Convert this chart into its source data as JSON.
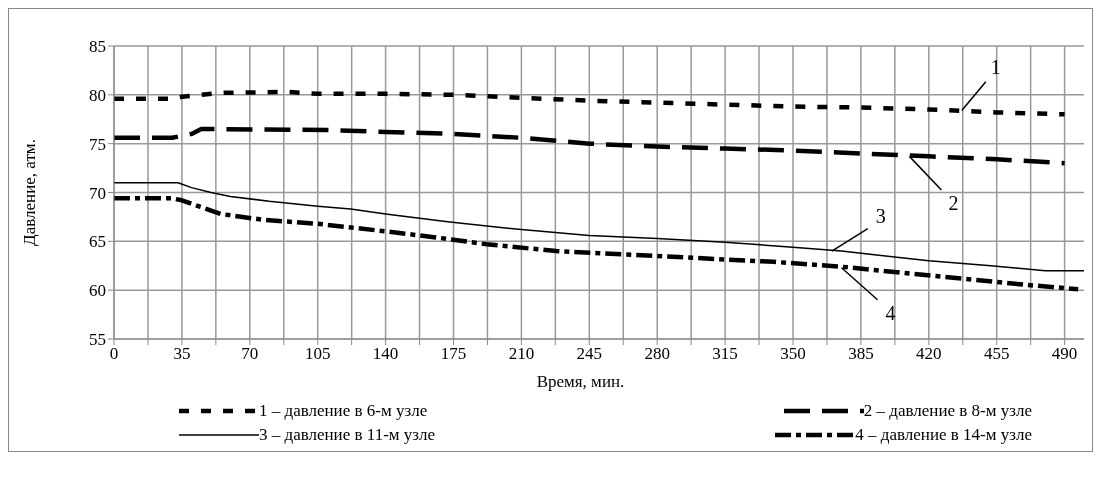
{
  "chart_data": {
    "type": "line",
    "xlabel": "Время, мин.",
    "ylabel": "Давление, атм.",
    "xlim": [
      0,
      500
    ],
    "ylim": [
      55,
      85
    ],
    "xticks": [
      0,
      {
        "value": 17.5,
        "label": null
      },
      35,
      {
        "value": 52.5,
        "label": null
      },
      70,
      {
        "value": 87.5,
        "label": null
      },
      105,
      {
        "value": 122.5,
        "label": null
      },
      140,
      {
        "value": 157.5,
        "label": null
      },
      175,
      {
        "value": 192.5,
        "label": null
      },
      210,
      {
        "value": 227.5,
        "label": null
      },
      245,
      {
        "value": 262.5,
        "label": null
      },
      280,
      {
        "value": 297.5,
        "label": null
      },
      315,
      {
        "value": 332.5,
        "label": null
      },
      350,
      {
        "value": 367.5,
        "label": null
      },
      385,
      {
        "value": 402.5,
        "label": null
      },
      420,
      {
        "value": 437.5,
        "label": null
      },
      455,
      {
        "value": 472.5,
        "label": null
      },
      490
    ],
    "yticks": [
      55,
      60,
      65,
      70,
      75,
      80,
      85
    ],
    "grid": true,
    "legend": "bottom",
    "marker": "none",
    "series": [
      {
        "name": "1 – давление в 6-м узле",
        "color": "#000000",
        "line_style": "dotted",
        "x": [
          0,
          30,
          35,
          45,
          55,
          90,
          105,
          140,
          175,
          210,
          245,
          280,
          315,
          350,
          385,
          420,
          455,
          490
        ],
        "values": [
          79.6,
          79.6,
          79.8,
          80.0,
          80.2,
          80.3,
          80.1,
          80.1,
          80.0,
          79.7,
          79.4,
          79.2,
          79.0,
          78.8,
          78.7,
          78.5,
          78.2,
          78.0
        ]
      },
      {
        "name": "2 – давление в 8-м узле",
        "color": "#000000",
        "line_style": "dashed",
        "x": [
          0,
          30,
          40,
          45,
          110,
          140,
          175,
          210,
          245,
          280,
          315,
          350,
          385,
          420,
          455,
          490
        ],
        "values": [
          75.6,
          75.6,
          76.0,
          76.5,
          76.4,
          76.2,
          76.0,
          75.6,
          75.0,
          74.7,
          74.5,
          74.3,
          74.0,
          73.7,
          73.4,
          73.0
        ]
      },
      {
        "name": "3 – давление в 11-м узле",
        "color": "#000000",
        "line_style": "solid",
        "x": [
          0,
          33,
          40,
          50,
          60,
          80,
          105,
          122,
          140,
          172,
          210,
          245,
          280,
          315,
          350,
          375,
          420,
          452,
          480,
          500
        ],
        "values": [
          71.0,
          71.0,
          70.5,
          70.0,
          69.6,
          69.1,
          68.6,
          68.3,
          67.8,
          67.0,
          66.2,
          65.6,
          65.3,
          64.9,
          64.4,
          64.0,
          63.0,
          62.5,
          62.0,
          62.0
        ]
      },
      {
        "name": "4 – давление в 14-м узле",
        "color": "#000000",
        "line_style": "dashed",
        "x": [
          0,
          30,
          35,
          45,
          55,
          77,
          105,
          141,
          166,
          192,
          228,
          269,
          340,
          375,
          426,
          467,
          497
        ],
        "values": [
          69.4,
          69.4,
          69.2,
          68.5,
          67.8,
          67.2,
          66.8,
          66.0,
          65.4,
          64.7,
          64.0,
          63.6,
          62.9,
          62.4,
          61.4,
          60.6,
          60.1
        ]
      }
    ],
    "annotations": [
      {
        "text": "1",
        "x": 437,
        "y": 78.4
      },
      {
        "text": "2",
        "x": 410,
        "y": 73.7
      },
      {
        "text": "3",
        "x": 370,
        "y": 64.0
      },
      {
        "text": "4",
        "x": 375,
        "y": 62.3
      }
    ]
  }
}
